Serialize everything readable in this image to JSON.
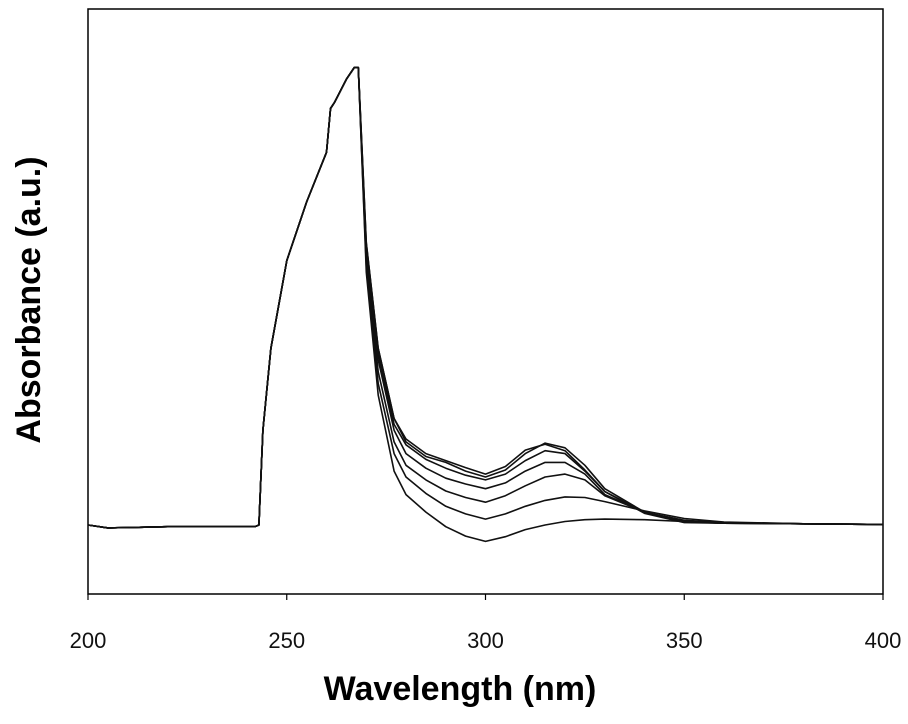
{
  "chart_data": {
    "type": "line",
    "title": "",
    "xlabel": "Wavelength (nm)",
    "ylabel": "Absorbance (a.u.)",
    "xlim": [
      200,
      400
    ],
    "ylim": [
      0,
      1
    ],
    "x_ticks": [
      "200",
      "250",
      "300",
      "350",
      "400"
    ],
    "y_ticks": [],
    "grid": false,
    "legend": "none",
    "line_color": "#111111",
    "x": [
      200,
      205,
      220,
      240,
      242,
      243,
      244,
      246,
      250,
      255,
      260,
      261,
      262,
      265,
      267,
      268,
      270,
      273,
      277,
      280,
      285,
      290,
      295,
      300,
      305,
      310,
      315,
      320,
      325,
      330,
      340,
      350,
      360,
      380,
      400
    ],
    "series": [
      {
        "values": [
          0.118,
          0.113,
          0.115,
          0.115,
          0.115,
          0.118,
          0.28,
          0.42,
          0.57,
          0.67,
          0.755,
          0.83,
          0.84,
          0.88,
          0.9,
          0.9,
          0.6,
          0.42,
          0.3,
          0.26,
          0.235,
          0.225,
          0.21,
          0.2,
          0.212,
          0.24,
          0.258,
          0.25,
          0.22,
          0.18,
          0.14,
          0.123,
          0.121,
          0.12,
          0.119
        ]
      },
      {
        "values": [
          0.118,
          0.113,
          0.115,
          0.115,
          0.115,
          0.118,
          0.28,
          0.42,
          0.57,
          0.67,
          0.755,
          0.83,
          0.84,
          0.88,
          0.9,
          0.9,
          0.6,
          0.42,
          0.3,
          0.265,
          0.24,
          0.228,
          0.216,
          0.205,
          0.218,
          0.246,
          0.256,
          0.245,
          0.212,
          0.175,
          0.138,
          0.122,
          0.121,
          0.12,
          0.119
        ]
      },
      {
        "values": [
          0.118,
          0.113,
          0.115,
          0.115,
          0.115,
          0.118,
          0.28,
          0.42,
          0.57,
          0.67,
          0.755,
          0.83,
          0.84,
          0.88,
          0.9,
          0.9,
          0.59,
          0.41,
          0.29,
          0.255,
          0.23,
          0.215,
          0.203,
          0.195,
          0.205,
          0.228,
          0.245,
          0.24,
          0.21,
          0.175,
          0.14,
          0.124,
          0.121,
          0.12,
          0.119
        ]
      },
      {
        "values": [
          0.118,
          0.113,
          0.115,
          0.115,
          0.115,
          0.118,
          0.28,
          0.42,
          0.57,
          0.67,
          0.755,
          0.83,
          0.84,
          0.88,
          0.9,
          0.9,
          0.58,
          0.4,
          0.28,
          0.24,
          0.215,
          0.198,
          0.188,
          0.18,
          0.19,
          0.21,
          0.225,
          0.225,
          0.205,
          0.17,
          0.14,
          0.124,
          0.121,
          0.12,
          0.119
        ]
      },
      {
        "values": [
          0.118,
          0.113,
          0.115,
          0.115,
          0.115,
          0.118,
          0.28,
          0.42,
          0.57,
          0.67,
          0.755,
          0.83,
          0.84,
          0.88,
          0.9,
          0.9,
          0.57,
          0.38,
          0.26,
          0.22,
          0.195,
          0.176,
          0.165,
          0.157,
          0.168,
          0.185,
          0.2,
          0.205,
          0.195,
          0.168,
          0.14,
          0.126,
          0.122,
          0.12,
          0.119
        ]
      },
      {
        "values": [
          0.118,
          0.113,
          0.115,
          0.115,
          0.115,
          0.118,
          0.28,
          0.42,
          0.57,
          0.67,
          0.755,
          0.83,
          0.84,
          0.88,
          0.9,
          0.9,
          0.56,
          0.36,
          0.24,
          0.2,
          0.172,
          0.15,
          0.137,
          0.128,
          0.137,
          0.15,
          0.16,
          0.166,
          0.165,
          0.158,
          0.142,
          0.129,
          0.123,
          0.12,
          0.119
        ]
      },
      {
        "values": [
          0.118,
          0.113,
          0.115,
          0.115,
          0.115,
          0.118,
          0.28,
          0.42,
          0.57,
          0.67,
          0.755,
          0.83,
          0.84,
          0.88,
          0.9,
          0.9,
          0.55,
          0.34,
          0.21,
          0.17,
          0.14,
          0.115,
          0.099,
          0.09,
          0.098,
          0.11,
          0.118,
          0.124,
          0.127,
          0.128,
          0.127,
          0.124,
          0.122,
          0.12,
          0.119
        ]
      }
    ]
  }
}
